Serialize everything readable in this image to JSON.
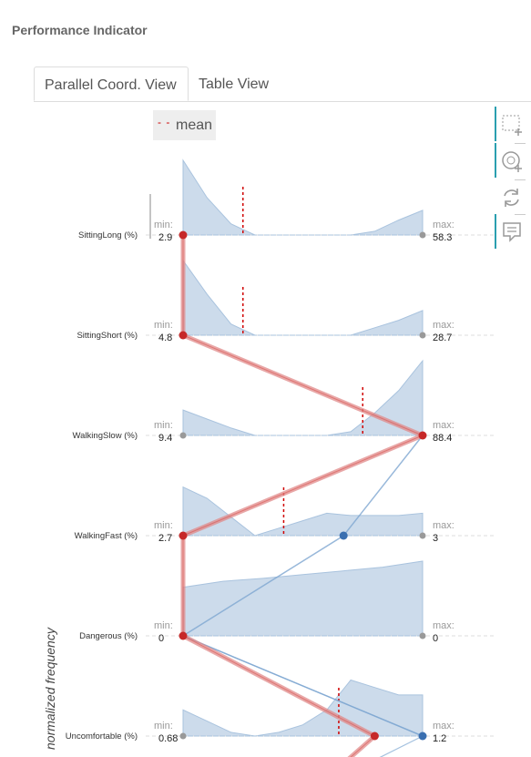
{
  "title": "Performance Indicator",
  "tabs": [
    {
      "label": "Parallel Coord. View",
      "active": true
    },
    {
      "label": "Table View",
      "active": false
    }
  ],
  "legend": {
    "symbol": "- -",
    "label": "mean"
  },
  "toolbar": [
    {
      "icon": "box-select-icon"
    },
    {
      "icon": "lasso-select-icon"
    },
    {
      "icon": "reset-icon"
    },
    {
      "icon": "comment-icon"
    }
  ],
  "y_axis_label": "normalized frequency",
  "colors": {
    "highlight": "#c62828",
    "selected_point": "#3a6fb0",
    "density": "#b6cce3",
    "mean": "#d00000",
    "axis_dot": "#999999"
  },
  "chart_data": {
    "type": "parallel-coordinates",
    "axes": [
      {
        "name": "SittingLong (%)",
        "min_label": "min:",
        "min": "2.9",
        "max_label": "max:",
        "max": "58.3",
        "mean_frac": 0.25,
        "density": [
          1.0,
          0.5,
          0.15,
          0.0,
          0.0,
          0.0,
          0.0,
          0.0,
          0.05,
          0.2,
          0.33
        ]
      },
      {
        "name": "SittingShort (%)",
        "min_label": "min:",
        "min": "4.8",
        "max_label": "max:",
        "max": "28.7",
        "mean_frac": 0.25,
        "density": [
          1.0,
          0.55,
          0.15,
          0.0,
          0.0,
          0.0,
          0.0,
          0.0,
          0.1,
          0.2,
          0.33
        ]
      },
      {
        "name": "WalkingSlow (%)",
        "min_label": "min:",
        "min": "9.4",
        "max_label": "max:",
        "max": "88.4",
        "mean_frac": 0.75,
        "density": [
          0.34,
          0.22,
          0.1,
          0.0,
          0.0,
          0.0,
          0.0,
          0.05,
          0.3,
          0.6,
          1.0
        ]
      },
      {
        "name": "WalkingFast (%)",
        "min_label": "min:",
        "min": "2.7",
        "max_label": "max:",
        "max": "3",
        "mean_frac": 0.42,
        "density": [
          0.65,
          0.5,
          0.25,
          0.0,
          0.1,
          0.2,
          0.3,
          0.27,
          0.27,
          0.27,
          0.3
        ]
      },
      {
        "name": "Dangerous (%)",
        "min_label": "min:",
        "min": "0",
        "max_label": "max:",
        "max": "0",
        "mean_frac": null,
        "density": [
          0.65,
          0.73,
          0.77,
          0.82,
          0.87,
          0.92,
          1.0
        ]
      },
      {
        "name": "Uncomfortable (%)",
        "min_label": "min:",
        "min": "0.68",
        "max_label": "max:",
        "max": "1.2",
        "mean_frac": 0.65,
        "density": [
          0.35,
          0.2,
          0.05,
          0.0,
          0.05,
          0.15,
          0.35,
          0.75,
          0.65,
          0.55,
          0.55
        ]
      }
    ],
    "highlighted_line": [
      0.0,
      0.0,
      1.0,
      0.0,
      0.0,
      0.8
    ],
    "selected_line": [
      null,
      null,
      1.0,
      0.67,
      0.0,
      1.0
    ]
  }
}
